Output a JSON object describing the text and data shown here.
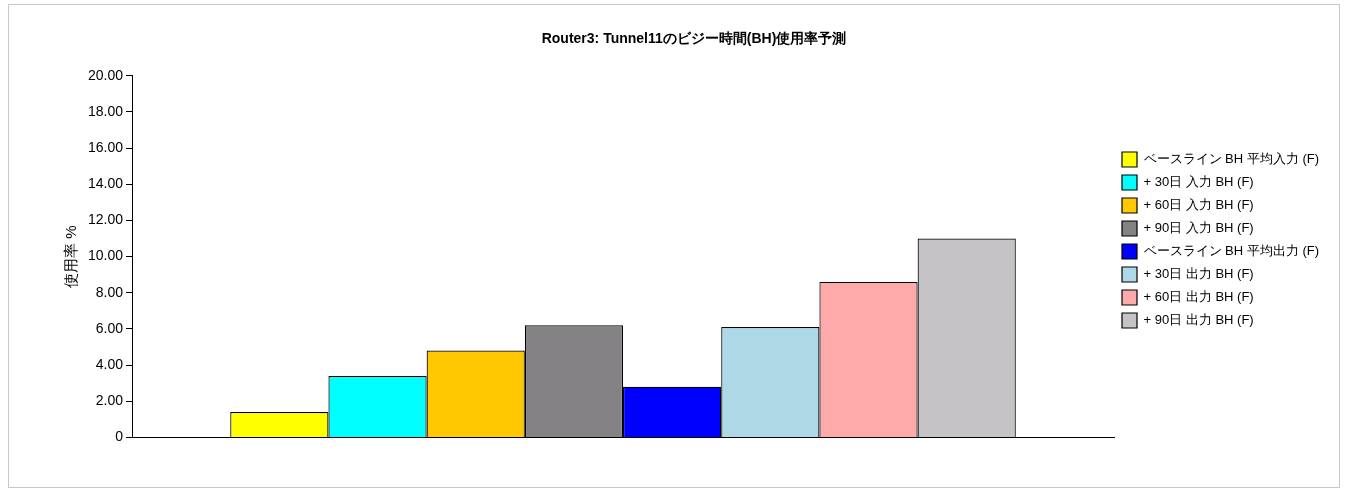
{
  "chart_data": {
    "type": "bar",
    "title": "Router3: Tunnel11のビジー時間(BH)使用率予測",
    "ylabel": "使用率 %",
    "categories": [
      null
    ],
    "series": [
      {
        "name": "ベースライン BH 平均入力 (F)",
        "color": "#ffff00",
        "values": [
          1.4
        ]
      },
      {
        "name": "+ 30日 入力 BH (F)",
        "color": "#00ffff",
        "values": [
          3.4
        ]
      },
      {
        "name": "+ 60日 入力 BH (F)",
        "color": "#ffc800",
        "values": [
          4.8
        ]
      },
      {
        "name": "+ 90日 入力 BH (F)",
        "color": "#848284",
        "values": [
          6.2
        ]
      },
      {
        "name": "ベースライン BH 平均出力 (F)",
        "color": "#0000ff",
        "values": [
          2.8
        ]
      },
      {
        "name": "+ 30日 出力 BH (F)",
        "color": "#add8e6",
        "values": [
          6.1
        ]
      },
      {
        "name": "+ 60日 出力 BH (F)",
        "color": "#ffaaaa",
        "values": [
          8.6
        ]
      },
      {
        "name": "+ 90日 出力 BH (F)",
        "color": "#c6c3c6",
        "values": [
          11.0
        ]
      }
    ],
    "ylim": [
      0,
      20
    ],
    "yticks": [
      {
        "value": 0,
        "label": "0"
      },
      {
        "value": 2,
        "label": "2.00"
      },
      {
        "value": 4,
        "label": "4.00"
      },
      {
        "value": 6,
        "label": "6.00"
      },
      {
        "value": 8,
        "label": "8.00"
      },
      {
        "value": 10,
        "label": "10.00"
      },
      {
        "value": 12,
        "label": "12.00"
      },
      {
        "value": 14,
        "label": "14.00"
      },
      {
        "value": 16,
        "label": "16.00"
      },
      {
        "value": 18,
        "label": "18.00"
      },
      {
        "value": 20,
        "label": "20.00"
      }
    ],
    "grid": false,
    "legend": "right"
  }
}
